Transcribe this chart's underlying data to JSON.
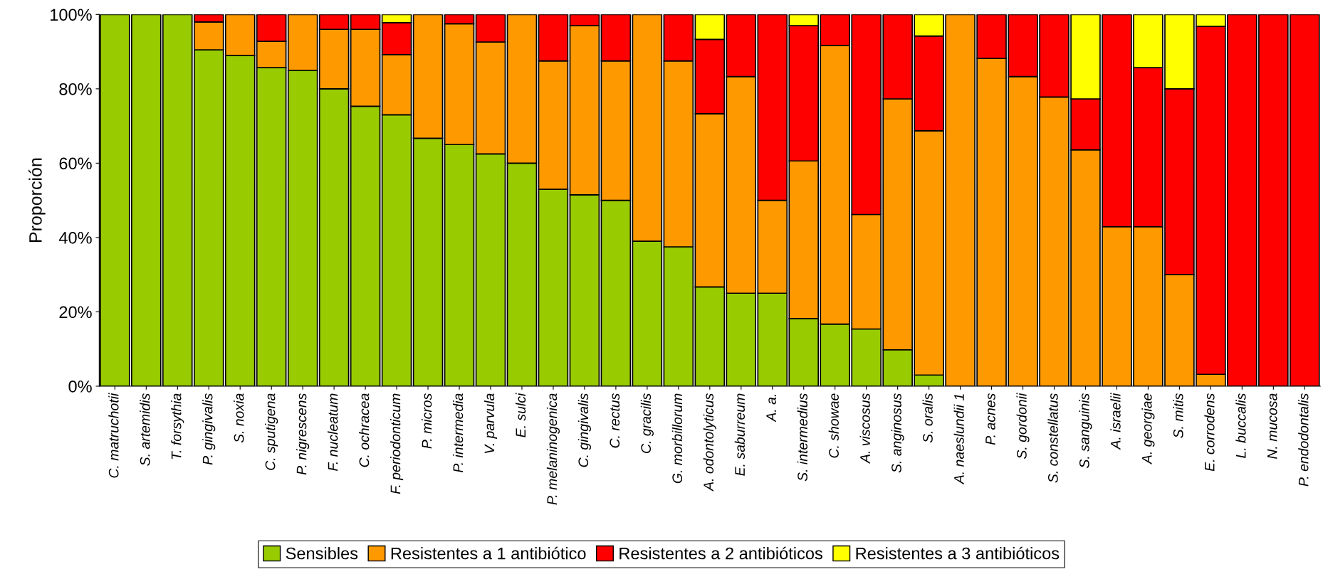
{
  "chart_data": {
    "type": "bar",
    "stacked": true,
    "ylabel": "Proporción",
    "categories": [
      "C. matruchotii",
      "S. artemidis",
      "T. forsythia",
      "P. gingivalis",
      "S. noxia",
      "C. sputigena",
      "P. nigrescens",
      "F. nucleatum",
      "C. ochracea",
      "F. periodonticum",
      "P. micros",
      "P. intermedia",
      "V. parvula",
      "E. sulci",
      "P. melaninogenica",
      "C. gingivalis",
      "C. rectus",
      "C. gracilis",
      "G. morbillorum",
      "A. odontolyticus",
      "E. saburreum",
      "A. a.",
      "S. intermedius",
      "C. showae",
      "A. viscosus",
      "S. anginosus",
      "S. oralis",
      "A. naeslundii 1",
      "P. acnes",
      "S. gordonii",
      "S. constellatus",
      "S. sanguinis",
      "A. israelii",
      "A. georgiae",
      "S. mitis",
      "E. corrodens",
      "L. buccalis",
      "N. mucosa",
      "P. endodontalis"
    ],
    "series": [
      {
        "name": "Sensibles",
        "color": "#99cc00",
        "values": [
          100,
          100,
          100,
          90.5,
          89,
          85.7,
          85,
          80,
          75.3,
          73,
          66.7,
          65,
          62.5,
          60,
          53,
          51.5,
          50,
          39,
          37.5,
          26.7,
          25,
          25,
          18.2,
          16.7,
          15.4,
          9.8,
          3,
          null,
          null,
          null,
          null,
          null,
          null,
          null,
          null,
          null,
          null,
          null,
          null
        ]
      },
      {
        "name": "Resistentes a 1 antibiótico",
        "color": "#ff9900",
        "values": [
          null,
          null,
          null,
          7.5,
          11,
          7.1,
          15,
          16,
          20.7,
          16.2,
          33.3,
          32.5,
          30.1,
          40,
          34.5,
          45.5,
          37.5,
          61,
          50,
          46.6,
          58.3,
          25,
          42.4,
          75,
          30.8,
          67.5,
          65.7,
          100,
          88.2,
          83.3,
          77.8,
          63.6,
          42.9,
          42.9,
          30,
          3.2,
          null,
          null,
          null
        ]
      },
      {
        "name": "Resistentes a 2 antibióticos",
        "color": "#ff0000",
        "values": [
          null,
          null,
          null,
          2,
          null,
          7.2,
          null,
          4,
          4,
          8.6,
          null,
          2.5,
          7.4,
          null,
          12.5,
          3,
          12.5,
          null,
          12.5,
          20,
          16.7,
          50,
          36.4,
          8.3,
          53.8,
          22.7,
          25.5,
          null,
          11.8,
          16.7,
          22.2,
          13.7,
          57.1,
          42.8,
          50,
          93.6,
          100,
          100,
          100
        ]
      },
      {
        "name": "Resistentes a 3 antibióticos",
        "color": "#ffff00",
        "values": [
          null,
          null,
          null,
          null,
          null,
          null,
          null,
          null,
          null,
          2.2,
          null,
          null,
          null,
          null,
          null,
          null,
          null,
          null,
          null,
          6.7,
          null,
          null,
          3,
          null,
          null,
          null,
          5.8,
          null,
          null,
          null,
          null,
          22.7,
          null,
          14.3,
          20,
          3.2,
          null,
          null,
          null
        ]
      }
    ],
    "ylim": [
      0,
      100
    ],
    "yticks": [
      {
        "value": 0,
        "label": "0%"
      },
      {
        "value": 20,
        "label": "20%"
      },
      {
        "value": 40,
        "label": "40%"
      },
      {
        "value": 60,
        "label": "60%"
      },
      {
        "value": 80,
        "label": "80%"
      },
      {
        "value": 100,
        "label": "100%"
      }
    ],
    "grid": false,
    "legend": "bottom"
  }
}
